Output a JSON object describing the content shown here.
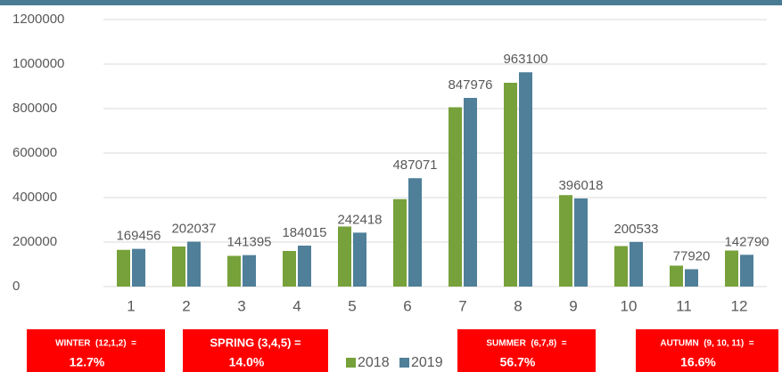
{
  "chart_data": {
    "type": "bar",
    "categories": [
      "1",
      "2",
      "3",
      "4",
      "5",
      "6",
      "7",
      "8",
      "9",
      "10",
      "11",
      "12"
    ],
    "series": [
      {
        "name": "2018",
        "color": "#77a13a",
        "values": [
          165000,
          180000,
          138000,
          160000,
          270000,
          393000,
          806000,
          916000,
          411000,
          182000,
          94000,
          162000
        ]
      },
      {
        "name": "2019",
        "color": "#4f7f99",
        "values": [
          169456,
          202037,
          141395,
          184015,
          242418,
          487071,
          847976,
          963100,
          396018,
          200533,
          77920,
          142790
        ]
      }
    ],
    "ylim": [
      0,
      1200000
    ],
    "yticks": [
      0,
      200000,
      400000,
      600000,
      800000,
      1000000,
      1200000
    ],
    "grid": true,
    "legend": "bottom",
    "annotations": [
      {
        "title": "WINTER  (12,1,2)  =",
        "text": "12.7%"
      },
      {
        "title": "SPRING (3,4,5) =",
        "text": "14.0%"
      },
      {
        "title": "SUMMER  (6,7,8)  =",
        "text": "56.7%"
      },
      {
        "title": "AUTUMN  (9, 10, 11)  =",
        "text": "16.6%"
      }
    ]
  }
}
